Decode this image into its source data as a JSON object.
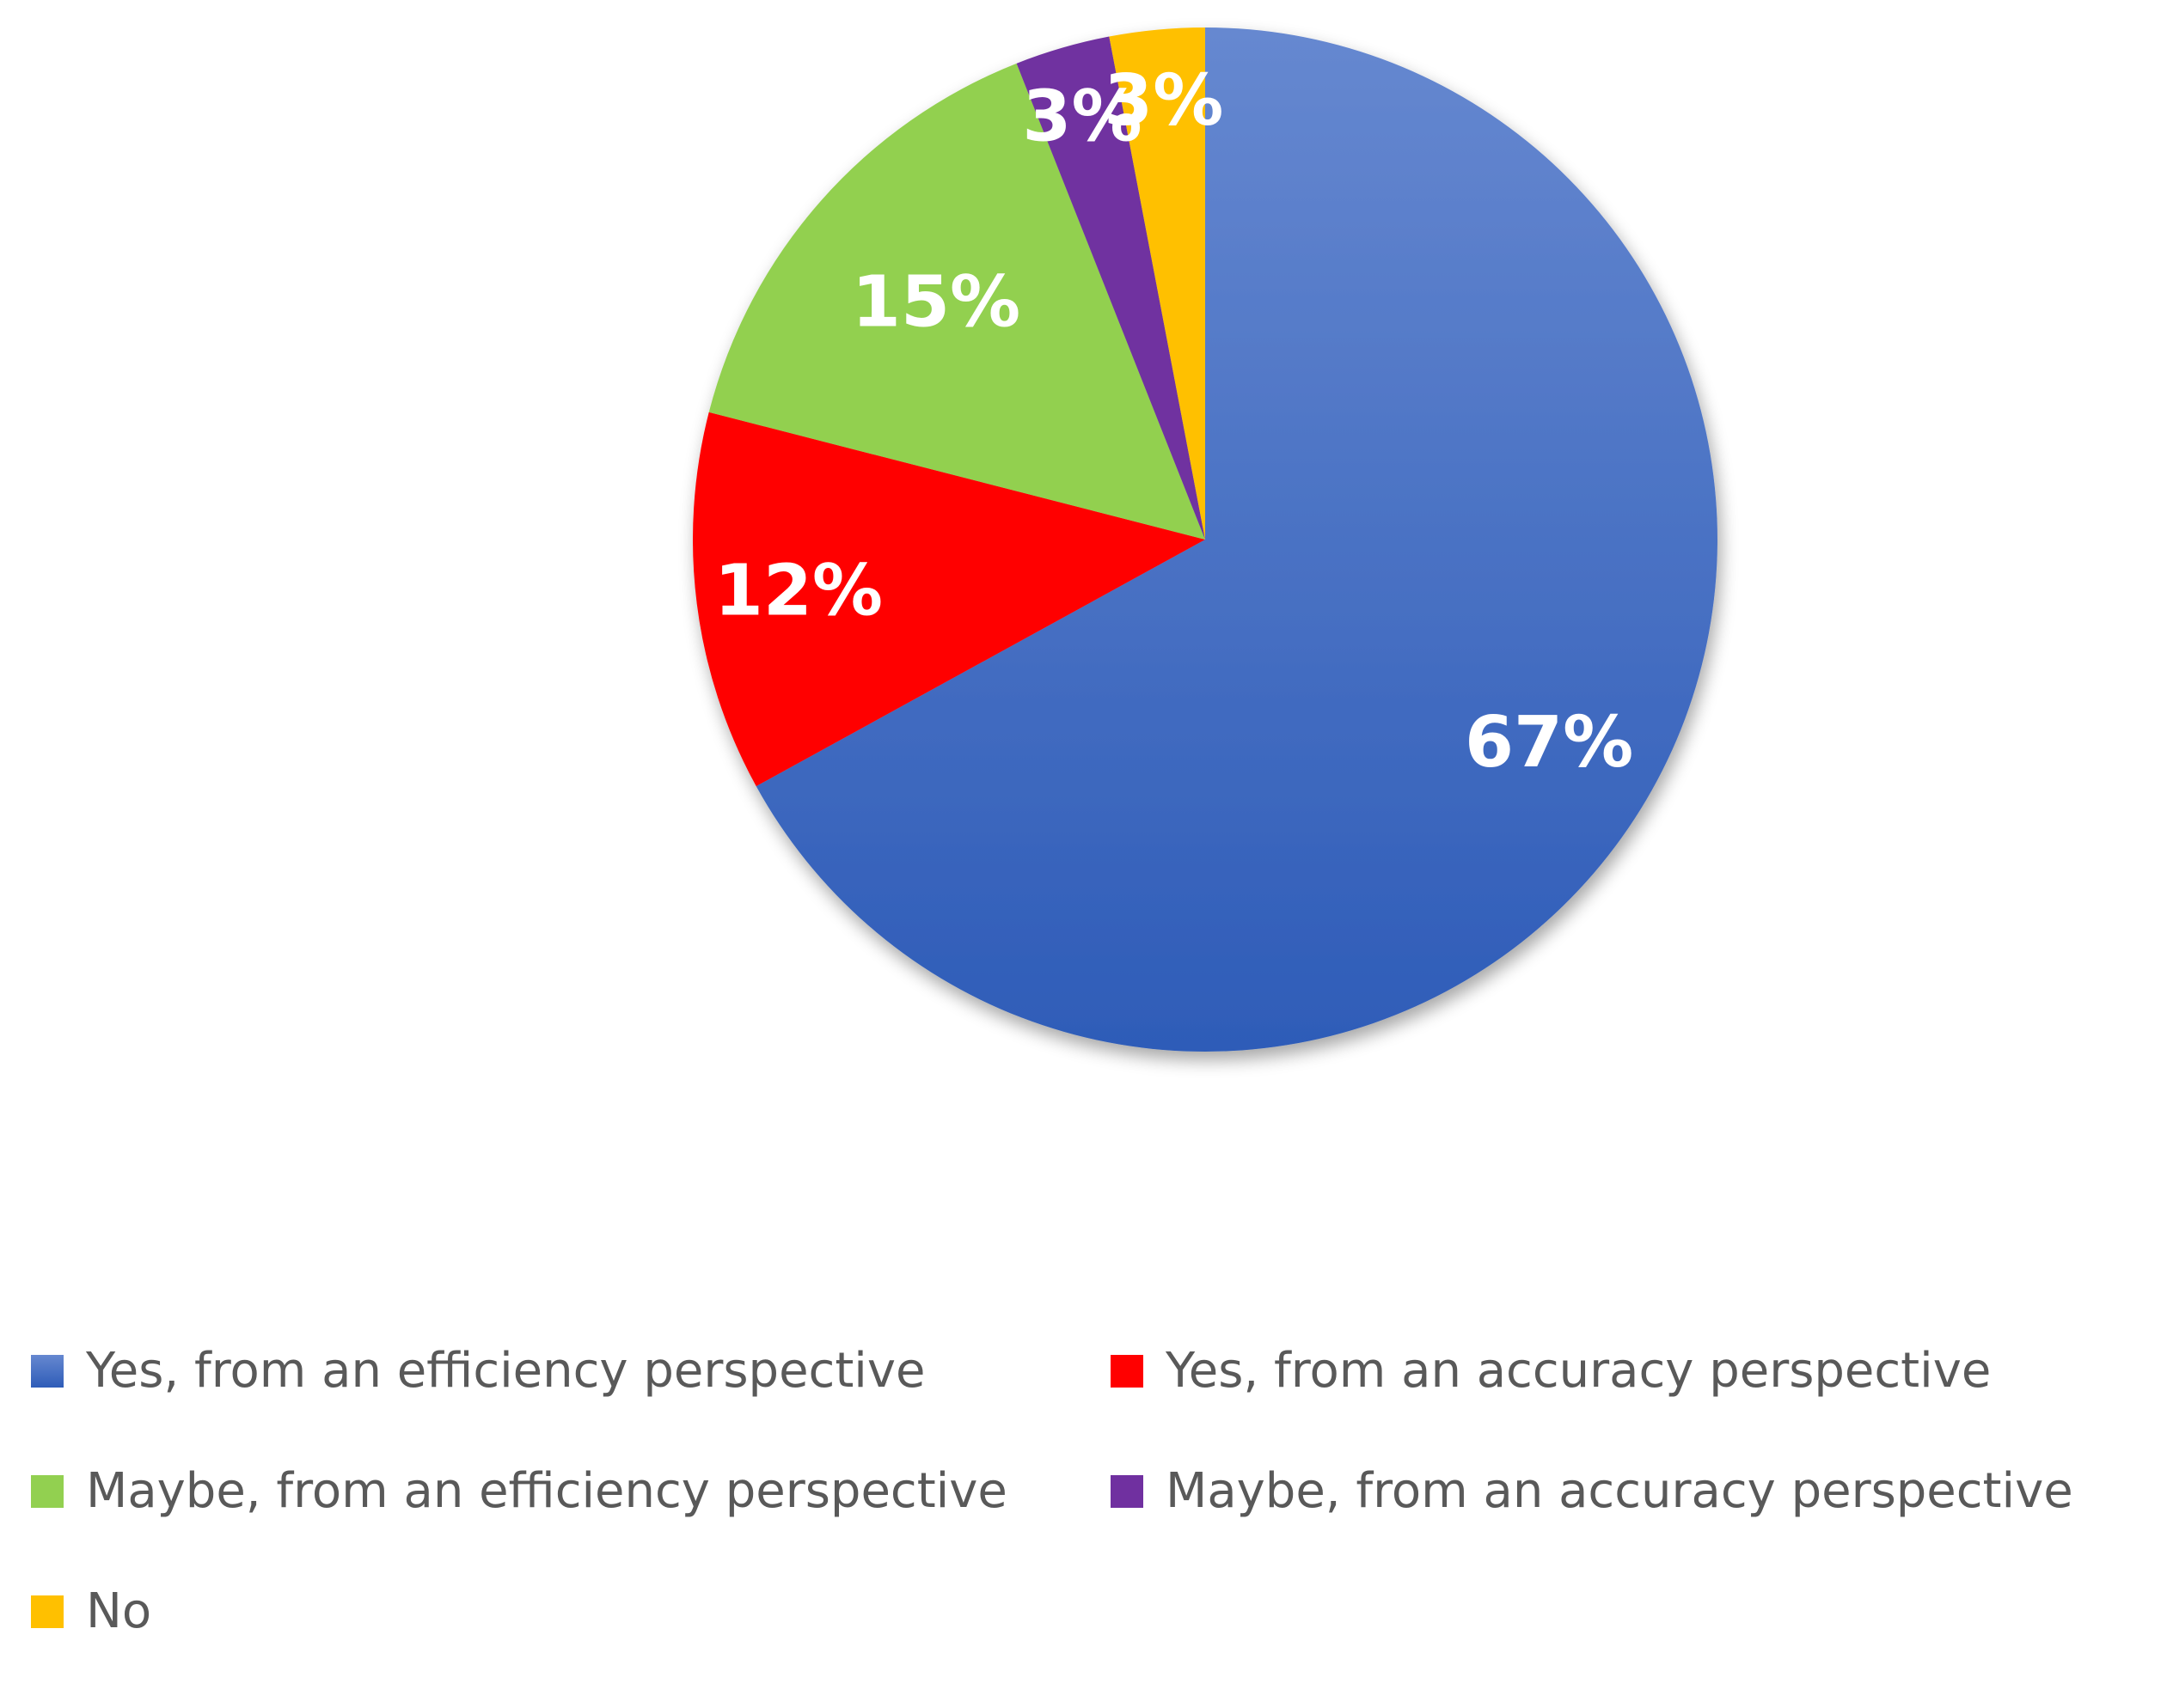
{
  "chart_data": {
    "type": "pie",
    "title": "",
    "legend_position": "bottom",
    "start_angle_deg": 0,
    "direction": "clockwise",
    "slices": [
      {
        "label": "Yes, from an efficiency perspective",
        "value": 67,
        "display": "67%",
        "color": "#4472C4"
      },
      {
        "label": "Yes, from an accuracy perspective",
        "value": 12,
        "display": "12%",
        "color": "#FF0000"
      },
      {
        "label": "Maybe, from an efficiency perspective",
        "value": 15,
        "display": "15%",
        "color": "#92D050"
      },
      {
        "label": "Maybe, from an accuracy perspective",
        "value": 3,
        "display": "3%",
        "color": "#7030A0"
      },
      {
        "label": "No",
        "value": 3,
        "display": "3%",
        "color": "#FFC000"
      }
    ]
  }
}
